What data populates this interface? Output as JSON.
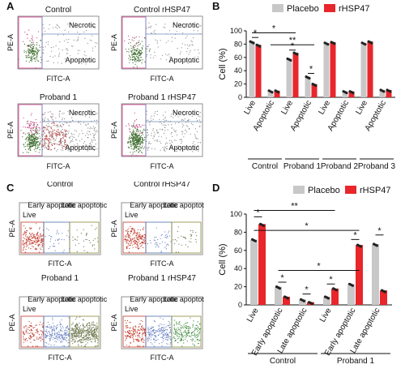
{
  "panels": {
    "A": {
      "letter": "A",
      "plots": [
        {
          "title": "Control",
          "region1": "Necrotic",
          "region2": "Apoptotic",
          "ylabel": "PE-A",
          "xlabel": "FITC-A",
          "density": "low"
        },
        {
          "title": "Control rHSP47",
          "region1": "Necrotic",
          "region2": "Apoptotic",
          "ylabel": "PE-A",
          "xlabel": "FITC-A",
          "density": "low"
        },
        {
          "title": "Proband 1",
          "region1": "Necrotic",
          "region2": "Apoptotic",
          "ylabel": "PE-A",
          "xlabel": "FITC-A",
          "density": "high"
        },
        {
          "title": "Proband 1 rHSP47",
          "region1": "Necrotic",
          "region2": "Apoptotic",
          "ylabel": "PE-A",
          "xlabel": "FITC-A",
          "density": "mid"
        }
      ]
    },
    "C": {
      "letter": "C",
      "plots": [
        {
          "title": "Control",
          "gates": [
            "Live",
            "Early apoptotic",
            "Late apoptotic"
          ],
          "ylabel": "PE-A",
          "xlabel": "FITC-A",
          "density": "low"
        },
        {
          "title": "Control rHSP47",
          "gates": [
            "Live",
            "Early apoptotic",
            "Late apoptotic"
          ],
          "ylabel": "PE-A",
          "xlabel": "FITC-A",
          "density": "low"
        },
        {
          "title": "Proband 1",
          "gates": [
            "Live",
            "Early apoptotic",
            "Late apoptotic"
          ],
          "ylabel": "PE-A",
          "xlabel": "FITC-A",
          "density": "high"
        },
        {
          "title": "Proband 1 rHSP47",
          "gates": [
            "Live",
            "Early apoptotic",
            "Late apoptotic"
          ],
          "ylabel": "PE-A",
          "xlabel": "FITC-A",
          "density": "mid"
        }
      ]
    },
    "B": {
      "letter": "B"
    },
    "D": {
      "letter": "D"
    }
  },
  "chart_data": [
    {
      "panel": "B",
      "type": "bar",
      "ylabel": "Cell (%)",
      "ylim": [
        0,
        100
      ],
      "yticks": [
        0,
        20,
        40,
        60,
        80,
        100
      ],
      "categories": [
        "Live",
        "Apoptotic",
        "Live",
        "Apoptotic",
        "Live",
        "Apoptotic",
        "Live",
        "Apoptotic"
      ],
      "groups": [
        {
          "label": "Control",
          "span": [
            0,
            1
          ]
        },
        {
          "label": "Proband 1",
          "span": [
            2,
            3
          ]
        },
        {
          "label": "Proband 2",
          "span": [
            4,
            5
          ]
        },
        {
          "label": "Proband 3",
          "span": [
            6,
            7
          ]
        }
      ],
      "series": [
        {
          "name": "Placebo",
          "color": "#c8c8c8",
          "values": [
            84,
            10,
            58,
            31,
            82,
            9,
            82,
            11
          ]
        },
        {
          "name": "rHSP47",
          "color": "#e8262b",
          "values": [
            79,
            10,
            67,
            20,
            83,
            9,
            84,
            11
          ]
        }
      ],
      "significance": [
        {
          "label": "*",
          "from": 0,
          "to": 0,
          "level": 90
        },
        {
          "label": "*",
          "from": 0,
          "to": 2,
          "level": 97
        },
        {
          "label": "**",
          "from": 1,
          "to": 3,
          "level": 79
        },
        {
          "label": "*",
          "from": 2,
          "to": 2,
          "level": 71
        },
        {
          "label": "*",
          "from": 3,
          "to": 3,
          "level": 36
        }
      ],
      "legend": "top-right",
      "grid": false
    },
    {
      "panel": "D",
      "type": "bar",
      "ylabel": "Cell (%)",
      "ylim": [
        0,
        100
      ],
      "yticks": [
        0,
        20,
        40,
        60,
        80,
        100
      ],
      "categories": [
        "Live",
        "Early apoptotic",
        "Late apoptotic",
        "Live",
        "Early apoptotic",
        "Late apoptotic"
      ],
      "groups": [
        {
          "label": "Control",
          "span": [
            0,
            2
          ]
        },
        {
          "label": "Proband 1",
          "span": [
            3,
            5
          ]
        }
      ],
      "series": [
        {
          "name": "Placebo",
          "color": "#c8c8c8",
          "values": [
            72,
            20,
            6,
            9,
            23,
            67
          ]
        },
        {
          "name": "rHSP47",
          "color": "#e8262b",
          "values": [
            89,
            9,
            3,
            18,
            66,
            16
          ]
        }
      ],
      "significance": [
        {
          "label": "*",
          "from": 0,
          "to": 0,
          "level": 97
        },
        {
          "label": "**",
          "from": 0,
          "to": 3,
          "level": 104
        },
        {
          "label": "*",
          "from": 0,
          "to": 4,
          "level": 82
        },
        {
          "label": "*",
          "from": 1,
          "to": 4,
          "level": 38
        },
        {
          "label": "*",
          "from": 1,
          "to": 1,
          "level": 25
        },
        {
          "label": "*",
          "from": 2,
          "to": 2,
          "level": 12
        },
        {
          "label": "*",
          "from": 3,
          "to": 3,
          "level": 23
        },
        {
          "label": "*",
          "from": 4,
          "to": 4,
          "level": 72
        },
        {
          "label": "*",
          "from": 5,
          "to": 5,
          "level": 77
        }
      ],
      "legend": "top-right",
      "grid": false
    }
  ]
}
